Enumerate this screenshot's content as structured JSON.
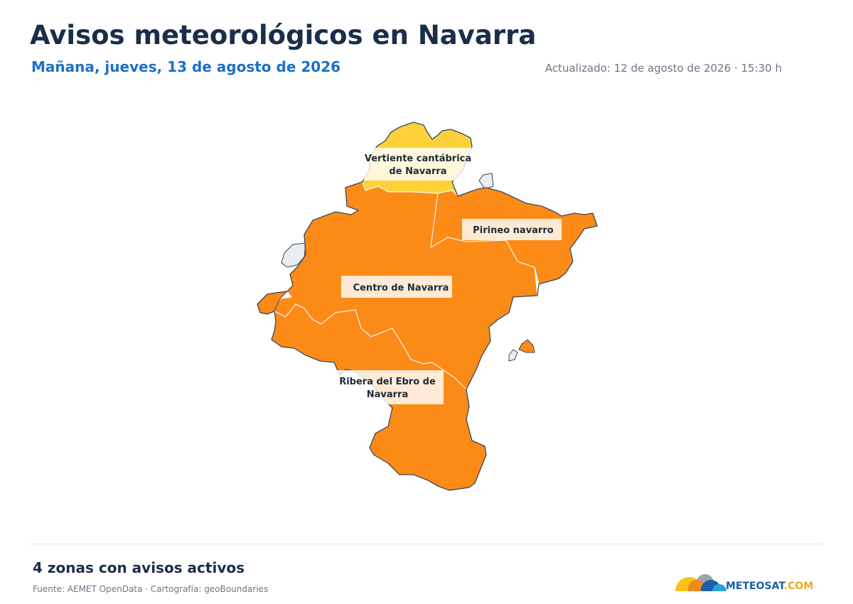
{
  "header": {
    "title": "Avisos meteorológicos en Navarra",
    "subtitle": "Mañana, jueves, 13 de agosto de 2026",
    "updated": "Actualizado: 12 de agosto de 2026 · 15:30 h"
  },
  "colors": {
    "yellow_warning": "#fdd13a",
    "orange_warning": "#fc8a17",
    "neighbor_land": "#e9edf3",
    "title": "#1a2e4a",
    "subtitle": "#1a70c8"
  },
  "zones": [
    {
      "name": "Vertiente cantábrica de Navarra",
      "line1": "Vertiente cantábrica",
      "line2": "de Navarra",
      "level": "yellow"
    },
    {
      "name": "Pirineo navarro",
      "line1": "Pirineo navarro",
      "level": "orange"
    },
    {
      "name": "Centro de Navarra",
      "line1": "Centro de Navarra",
      "level": "orange"
    },
    {
      "name": "Ribera del Ebro de Navarra",
      "line1": "Ribera del Ebro de",
      "line2": "Navarra",
      "level": "orange"
    }
  ],
  "footer": {
    "summary": "4 zonas con avisos activos",
    "source": "Fuente: AEMET OpenData · Cartografía: geoBoundaries",
    "logo_main": "METEOSAT",
    "logo_suffix": ".COM"
  }
}
